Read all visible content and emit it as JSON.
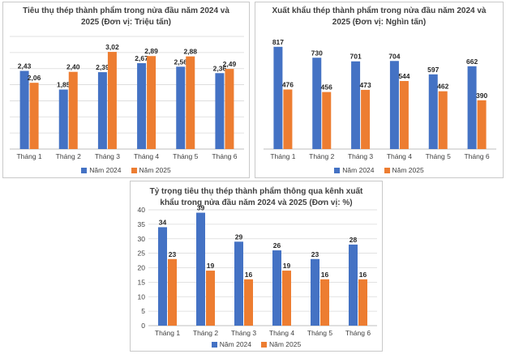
{
  "colors": {
    "nam_2024": "#4472c4",
    "nam_2025": "#ed7d31",
    "grid": "#d9d9d9",
    "axis": "#bfbfbf"
  },
  "charts": [
    {
      "title_line1": "Tiêu thụ thép thành phẩm trong nửa đầu năm 2024 và",
      "title_line2": "2025 (Đơn vị: Triệu tấn)",
      "legend": [
        "Năm 2024",
        "Năm 2025"
      ]
    },
    {
      "title_line1": "Xuất khẩu thép thành phẩm trong nửa đầu năm 2024 và",
      "title_line2": "2025 (Đơn vị: Nghìn tấn)",
      "legend": [
        "Năm 2024",
        "Năm 2025"
      ]
    },
    {
      "title_line1": "Tỷ trọng tiêu thụ thép thành phẩm thông qua kênh xuất",
      "title_line2": "khẩu trong nửa đầu năm 2024 và 2025 (Đơn vị: %)",
      "legend": [
        "Năm 2024",
        "Năm 2025"
      ]
    }
  ],
  "chart_data": [
    {
      "type": "bar",
      "title": "Tiêu thụ thép thành phẩm trong nửa đầu năm 2024 và 2025 (Đơn vị: Triệu tấn)",
      "categories": [
        "Tháng 1",
        "Tháng 2",
        "Tháng 3",
        "Tháng 4",
        "Tháng 5",
        "Tháng 6"
      ],
      "series": [
        {
          "name": "Năm 2024",
          "values": [
            2.43,
            1.85,
            2.39,
            2.67,
            2.56,
            2.36
          ],
          "labels": [
            "2,43",
            "1,85",
            "2,39",
            "2,67",
            "2,56",
            "2,36"
          ]
        },
        {
          "name": "Năm 2025",
          "values": [
            2.06,
            2.4,
            3.02,
            2.89,
            2.88,
            2.49
          ],
          "labels": [
            "2,06",
            "2,40",
            "3,02",
            "2,89",
            "2,88",
            "2,49"
          ]
        }
      ],
      "ylim": [
        0,
        3.5
      ],
      "gridlines": 7,
      "show_y_ticks": false,
      "legend_position": "bottom"
    },
    {
      "type": "bar",
      "title": "Xuất khẩu thép thành phẩm trong nửa đầu năm 2024 và 2025 (Đơn vị: Nghìn tấn)",
      "categories": [
        "Tháng 1",
        "Tháng 2",
        "Tháng 3",
        "Tháng 4",
        "Tháng 5",
        "Tháng 6"
      ],
      "series": [
        {
          "name": "Năm 2024",
          "values": [
            817,
            730,
            701,
            704,
            597,
            662
          ],
          "labels": [
            "817",
            "730",
            "701",
            "704",
            "597",
            "662"
          ]
        },
        {
          "name": "Năm 2025",
          "values": [
            476,
            456,
            473,
            544,
            462,
            390
          ],
          "labels": [
            "476",
            "456",
            "473",
            "544",
            "462",
            "390"
          ]
        }
      ],
      "ylim": [
        0,
        900
      ],
      "gridlines": 0,
      "show_y_ticks": false,
      "legend_position": "bottom"
    },
    {
      "type": "bar",
      "title": "Tỷ trọng tiêu thụ thép thành phẩm thông qua kênh xuất khẩu trong nửa đầu năm 2024 và 2025 (Đơn vị: %)",
      "categories": [
        "Tháng 1",
        "Tháng 2",
        "Tháng 3",
        "Tháng 4",
        "Tháng 5",
        "Tháng 6"
      ],
      "series": [
        {
          "name": "Năm 2024",
          "values": [
            34,
            39,
            29,
            26,
            23,
            28
          ],
          "labels": [
            "34",
            "39",
            "29",
            "26",
            "23",
            "28"
          ]
        },
        {
          "name": "Năm 2025",
          "values": [
            23,
            19,
            16,
            19,
            16,
            16
          ],
          "labels": [
            "23",
            "19",
            "16",
            "19",
            "16",
            "16"
          ]
        }
      ],
      "ylim": [
        0,
        40
      ],
      "yticks": [
        0,
        5,
        10,
        15,
        20,
        25,
        30,
        35,
        40
      ],
      "gridlines": 8,
      "show_y_ticks": true,
      "legend_position": "bottom"
    }
  ]
}
